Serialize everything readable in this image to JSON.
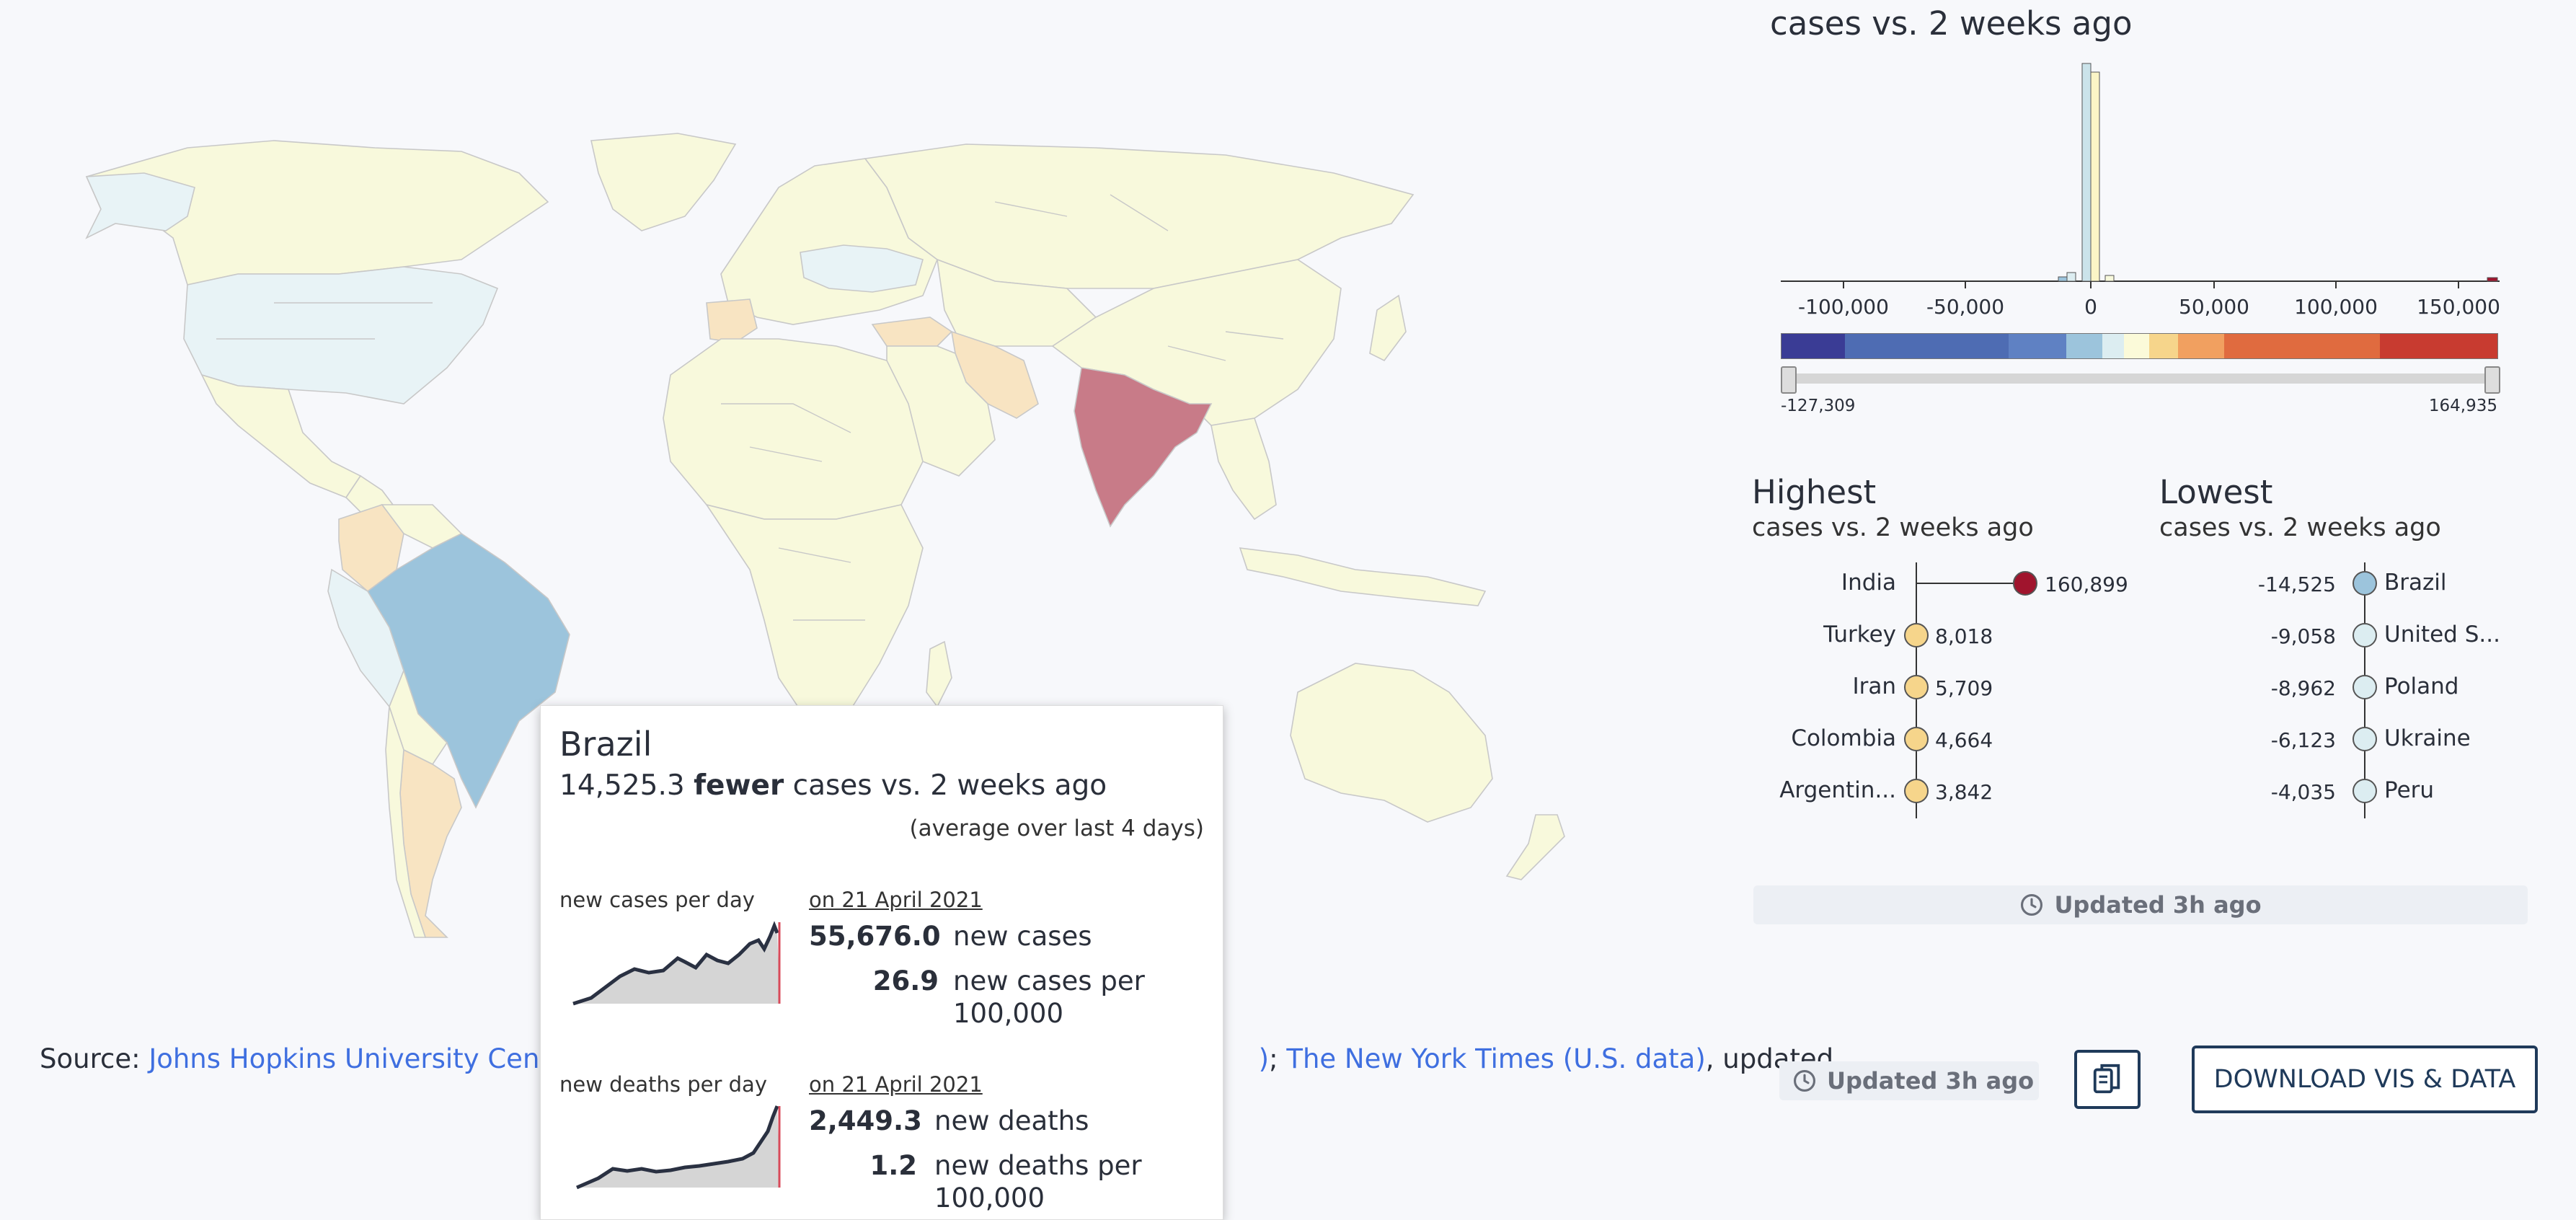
{
  "panel": {
    "top_subtitle": "cases vs. 2 weeks ago",
    "histogram_ticks": [
      "-100,000",
      "-50,000",
      "0",
      "50,000",
      "100,000",
      "150,000"
    ],
    "slider_min": "-127,309",
    "slider_max": "164,935",
    "legend_colors": [
      "#3a3c95",
      "#4e6cb3",
      "#5f81c3",
      "#9cc4dc",
      "#dcedf1",
      "#fbfad9",
      "#f6d58b",
      "#f1a060",
      "#e06b3f",
      "#c83b30",
      "#a0142d"
    ]
  },
  "highest": {
    "title": "Highest",
    "subtitle": "cases vs. 2 weeks ago",
    "rows": [
      {
        "country": "India",
        "value": "160,899",
        "color": "#a0142d"
      },
      {
        "country": "Turkey",
        "value": "8,018",
        "color": "#f6d58b"
      },
      {
        "country": "Iran",
        "value": "5,709",
        "color": "#f6d58b"
      },
      {
        "country": "Colombia",
        "value": "4,664",
        "color": "#f6d58b"
      },
      {
        "country": "Argentin...",
        "value": "3,842",
        "color": "#f6d58b"
      }
    ]
  },
  "lowest": {
    "title": "Lowest",
    "subtitle": "cases vs. 2 weeks ago",
    "rows": [
      {
        "country": "Brazil",
        "value": "-14,525",
        "color": "#9cc4dc"
      },
      {
        "country": "United S...",
        "value": "-9,058",
        "color": "#dcedf1"
      },
      {
        "country": "Poland",
        "value": "-8,962",
        "color": "#dcedf1"
      },
      {
        "country": "Ukraine",
        "value": "-6,123",
        "color": "#dcedf1"
      },
      {
        "country": "Peru",
        "value": "-4,035",
        "color": "#dcedf1"
      }
    ]
  },
  "updated": {
    "panel_label": "Updated 3h ago",
    "footer_label": "Updated 3h ago"
  },
  "footer": {
    "source_prefix": "Source: ",
    "link1": "Johns Hopkins University Cente",
    "link1_tail": ")",
    "separator": "; ",
    "link2": "The New York Times (U.S. data)",
    "suffix": ", updated",
    "download_label": "DOWNLOAD VIS & DATA"
  },
  "tooltip": {
    "country": "Brazil",
    "value": "14,525.3",
    "emphasis": "fewer",
    "rest": "cases vs. 2 weeks ago",
    "note": "(average over last 4 days)",
    "cases": {
      "label": "new cases per day",
      "date": "on 21 April 2021",
      "v1": "55,676.0",
      "u1": "new cases",
      "v2": "26.9",
      "u2a": "new cases per",
      "u2b": "100,000"
    },
    "deaths": {
      "label": "new deaths per day",
      "date": "on 21 April 2021",
      "v1": "2,449.3",
      "u1": "new deaths",
      "v2": "1.2",
      "u2a": "new deaths per",
      "u2b": "100,000"
    }
  }
}
